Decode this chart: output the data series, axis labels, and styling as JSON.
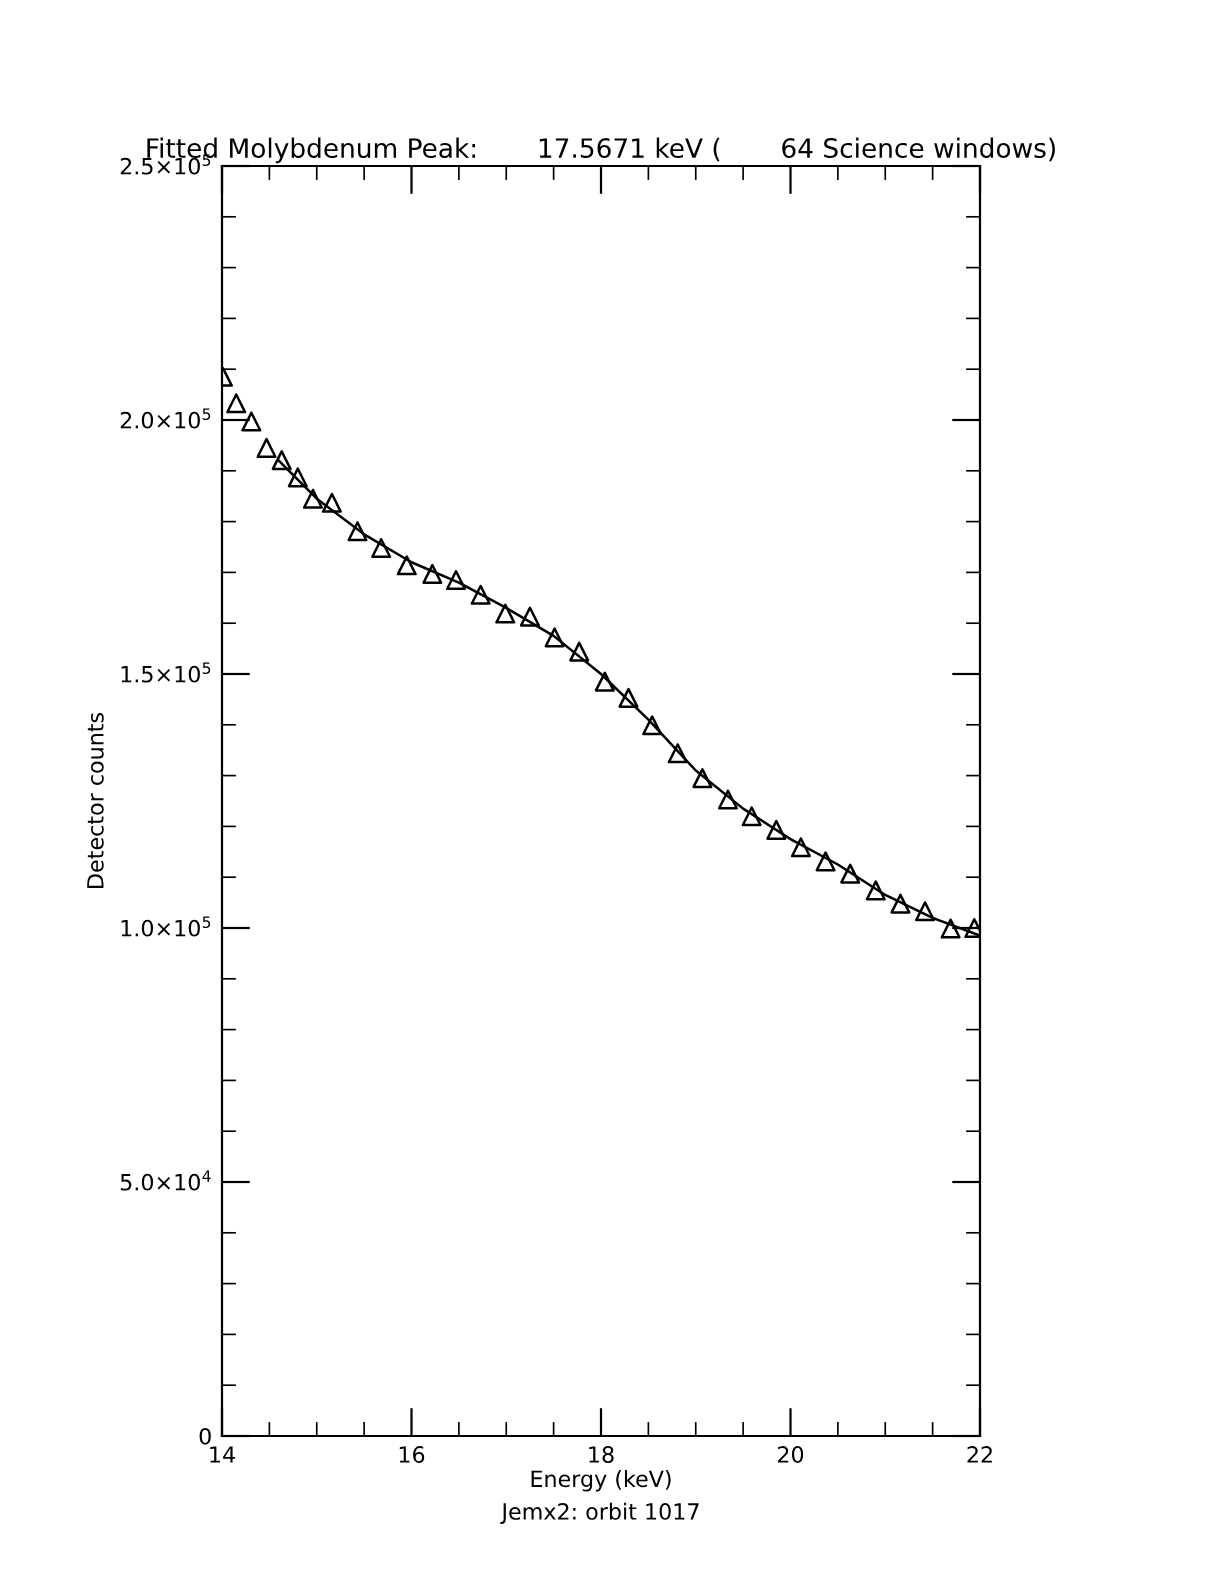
{
  "chart_data": {
    "type": "scatter",
    "title": "Fitted Molybdenum Peak:       17.5671 keV (       64 Science windows)",
    "xlabel": "Energy (keV)",
    "ylabel": "Detector counts",
    "annotations": [
      "Jemx2: orbit 1017"
    ],
    "series": [
      {
        "marker": "triangle",
        "color": "#000000",
        "x": [
          14.01,
          14.15,
          14.31,
          14.47,
          14.63,
          14.8,
          14.96,
          15.16,
          15.43,
          15.68,
          15.95,
          16.22,
          16.47,
          16.73,
          16.99,
          17.25,
          17.51,
          17.77,
          18.04,
          18.29,
          18.54,
          18.81,
          19.07,
          19.34,
          19.59,
          19.85,
          20.11,
          20.37,
          20.63,
          20.9,
          21.16,
          21.42,
          21.69,
          21.94
        ],
        "values": [
          208500,
          203300,
          199700,
          194500,
          192100,
          188700,
          184500,
          183700,
          178100,
          174800,
          171400,
          169700,
          168500,
          165600,
          161900,
          161300,
          157200,
          154400,
          148500,
          145300,
          139900,
          134400,
          129500,
          125300,
          122000,
          119300,
          115900,
          113100,
          110700,
          107400,
          104800,
          103300,
          99900,
          100000
        ]
      },
      {
        "type": "line",
        "marker": "none",
        "line_style": "solid",
        "color": "#000000",
        "x": [
          14.6,
          15.0,
          15.5,
          16.0,
          16.5,
          17.0,
          17.5,
          18.0,
          18.5,
          19.0,
          19.5,
          20.0,
          20.5,
          21.0,
          21.5,
          22.0
        ],
        "values": [
          192000,
          184500,
          177500,
          172000,
          168000,
          163000,
          157500,
          150000,
          141000,
          131000,
          123500,
          117500,
          112500,
          106500,
          102000,
          98500
        ]
      }
    ],
    "xlim": [
      14,
      22
    ],
    "xticks": [
      14,
      16,
      18,
      20,
      22
    ],
    "ylim": [
      0,
      250000
    ],
    "yticks": [
      0,
      {
        "value": 50000,
        "label": "5.0×10$^{4}$"
      },
      {
        "value": 100000,
        "label": "1.0×10$^{5}$"
      },
      {
        "value": 150000,
        "label": "1.5×10$^{5}$"
      },
      {
        "value": 200000,
        "label": "2.0×10$^{5}$"
      },
      {
        "value": 250000,
        "label": "2.5×10$^{5}$"
      }
    ],
    "grid": false,
    "legend": false
  }
}
